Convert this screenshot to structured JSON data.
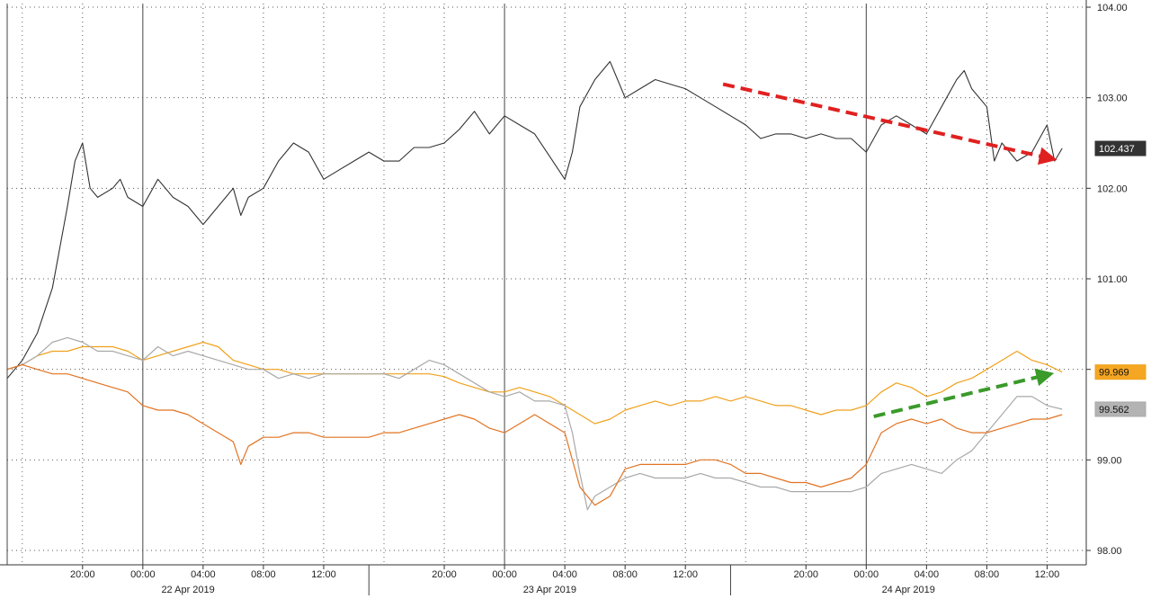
{
  "chart_data": {
    "type": "line",
    "title": "",
    "xlabel": "",
    "ylabel": "",
    "grid": true,
    "ylim": [
      98.0,
      104.0
    ],
    "y_ticks": [
      "98.00",
      "99.00",
      "100.00",
      "101.00",
      "102.00",
      "103.00",
      "104.00"
    ],
    "x_ticks": [
      {
        "label": "20:00",
        "t": 5
      },
      {
        "label": "00:00",
        "t": 9
      },
      {
        "label": "04:00",
        "t": 13
      },
      {
        "label": "08:00",
        "t": 17
      },
      {
        "label": "12:00",
        "t": 21
      },
      {
        "label": "20:00",
        "t": 29
      },
      {
        "label": "00:00",
        "t": 33
      },
      {
        "label": "04:00",
        "t": 37
      },
      {
        "label": "08:00",
        "t": 41
      },
      {
        "label": "12:00",
        "t": 45
      },
      {
        "label": "20:00",
        "t": 53
      },
      {
        "label": "00:00",
        "t": 57
      },
      {
        "label": "04:00",
        "t": 61
      },
      {
        "label": "08:00",
        "t": 65
      },
      {
        "label": "12:00",
        "t": 69
      }
    ],
    "date_labels": [
      "22 Apr 2019",
      "23 Apr 2019",
      "24 Apr 2019"
    ],
    "series": [
      {
        "color": "#333333",
        "last_label": "102.437",
        "points": [
          [
            0,
            99.9
          ],
          [
            1,
            100.1
          ],
          [
            2,
            100.4
          ],
          [
            3,
            100.9
          ],
          [
            4,
            101.8
          ],
          [
            4.5,
            102.3
          ],
          [
            5,
            102.5
          ],
          [
            5.5,
            102.0
          ],
          [
            6,
            101.9
          ],
          [
            7,
            102.0
          ],
          [
            7.5,
            102.1
          ],
          [
            8,
            101.9
          ],
          [
            9,
            101.8
          ],
          [
            10,
            102.1
          ],
          [
            11,
            101.9
          ],
          [
            12,
            101.8
          ],
          [
            13,
            101.6
          ],
          [
            14,
            101.8
          ],
          [
            15,
            102.0
          ],
          [
            15.5,
            101.7
          ],
          [
            16,
            101.9
          ],
          [
            17,
            102.0
          ],
          [
            18,
            102.3
          ],
          [
            19,
            102.5
          ],
          [
            20,
            102.4
          ],
          [
            21,
            102.1
          ],
          [
            23,
            102.3
          ],
          [
            24,
            102.4
          ],
          [
            25,
            102.3
          ],
          [
            26,
            102.3
          ],
          [
            27,
            102.45
          ],
          [
            28,
            102.45
          ],
          [
            29,
            102.5
          ],
          [
            30,
            102.65
          ],
          [
            31,
            102.85
          ],
          [
            32,
            102.6
          ],
          [
            33,
            102.8
          ],
          [
            34,
            102.7
          ],
          [
            35,
            102.6
          ],
          [
            36,
            102.35
          ],
          [
            37,
            102.1
          ],
          [
            37.5,
            102.4
          ],
          [
            38,
            102.9
          ],
          [
            39,
            103.2
          ],
          [
            40,
            103.4
          ],
          [
            40.5,
            103.2
          ],
          [
            41,
            103.0
          ],
          [
            42,
            103.1
          ],
          [
            43,
            103.2
          ],
          [
            44,
            103.15
          ],
          [
            45,
            103.1
          ],
          [
            46,
            103.0
          ],
          [
            47,
            102.9
          ],
          [
            48,
            102.8
          ],
          [
            49,
            102.7
          ],
          [
            50,
            102.55
          ],
          [
            51,
            102.6
          ],
          [
            52,
            102.6
          ],
          [
            53,
            102.55
          ],
          [
            54,
            102.6
          ],
          [
            55,
            102.55
          ],
          [
            56,
            102.55
          ],
          [
            57,
            102.4
          ],
          [
            58,
            102.7
          ],
          [
            59,
            102.8
          ],
          [
            60,
            102.7
          ],
          [
            61,
            102.6
          ],
          [
            62,
            102.9
          ],
          [
            63,
            103.2
          ],
          [
            63.5,
            103.3
          ],
          [
            64,
            103.1
          ],
          [
            65,
            102.9
          ],
          [
            65.5,
            102.3
          ],
          [
            66,
            102.5
          ],
          [
            67,
            102.3
          ],
          [
            68,
            102.4
          ],
          [
            69,
            102.7
          ],
          [
            69.5,
            102.3
          ],
          [
            70,
            102.44
          ]
        ]
      },
      {
        "color": "#f0a11c",
        "last_label": "99.969",
        "points": [
          [
            0,
            100.0
          ],
          [
            1,
            100.05
          ],
          [
            2,
            100.15
          ],
          [
            3,
            100.2
          ],
          [
            4,
            100.2
          ],
          [
            5,
            100.25
          ],
          [
            6,
            100.25
          ],
          [
            7,
            100.25
          ],
          [
            8,
            100.2
          ],
          [
            9,
            100.1
          ],
          [
            10,
            100.15
          ],
          [
            11,
            100.2
          ],
          [
            12,
            100.25
          ],
          [
            13,
            100.3
          ],
          [
            14,
            100.25
          ],
          [
            15,
            100.1
          ],
          [
            16,
            100.05
          ],
          [
            17,
            100.0
          ],
          [
            18,
            100.0
          ],
          [
            19,
            99.95
          ],
          [
            20,
            99.95
          ],
          [
            21,
            99.95
          ],
          [
            22,
            99.95
          ],
          [
            23,
            99.95
          ],
          [
            24,
            99.95
          ],
          [
            25,
            99.95
          ],
          [
            26,
            99.95
          ],
          [
            27,
            99.95
          ],
          [
            28,
            99.95
          ],
          [
            29,
            99.92
          ],
          [
            30,
            99.85
          ],
          [
            31,
            99.8
          ],
          [
            32,
            99.75
          ],
          [
            33,
            99.75
          ],
          [
            34,
            99.8
          ],
          [
            35,
            99.75
          ],
          [
            36,
            99.7
          ],
          [
            37,
            99.6
          ],
          [
            38,
            99.5
          ],
          [
            39,
            99.4
          ],
          [
            40,
            99.45
          ],
          [
            41,
            99.55
          ],
          [
            42,
            99.6
          ],
          [
            43,
            99.65
          ],
          [
            44,
            99.6
          ],
          [
            45,
            99.65
          ],
          [
            46,
            99.65
          ],
          [
            47,
            99.7
          ],
          [
            48,
            99.65
          ],
          [
            49,
            99.7
          ],
          [
            50,
            99.65
          ],
          [
            51,
            99.6
          ],
          [
            52,
            99.6
          ],
          [
            53,
            99.55
          ],
          [
            54,
            99.5
          ],
          [
            55,
            99.55
          ],
          [
            56,
            99.55
          ],
          [
            57,
            99.6
          ],
          [
            58,
            99.75
          ],
          [
            59,
            99.85
          ],
          [
            60,
            99.8
          ],
          [
            61,
            99.7
          ],
          [
            62,
            99.75
          ],
          [
            63,
            99.85
          ],
          [
            64,
            99.9
          ],
          [
            65,
            100.0
          ],
          [
            66,
            100.1
          ],
          [
            67,
            100.2
          ],
          [
            68,
            100.1
          ],
          [
            69,
            100.05
          ],
          [
            70,
            99.97
          ]
        ]
      },
      {
        "color": "#a9a9a9",
        "last_label": "99.562",
        "points": [
          [
            0,
            100.0
          ],
          [
            1,
            100.05
          ],
          [
            2,
            100.15
          ],
          [
            3,
            100.3
          ],
          [
            4,
            100.35
          ],
          [
            5,
            100.3
          ],
          [
            6,
            100.2
          ],
          [
            7,
            100.2
          ],
          [
            8,
            100.15
          ],
          [
            9,
            100.1
          ],
          [
            10,
            100.25
          ],
          [
            11,
            100.15
          ],
          [
            12,
            100.2
          ],
          [
            13,
            100.15
          ],
          [
            14,
            100.1
          ],
          [
            15,
            100.05
          ],
          [
            16,
            100.0
          ],
          [
            17,
            100.0
          ],
          [
            18,
            99.9
          ],
          [
            19,
            99.95
          ],
          [
            20,
            99.9
          ],
          [
            21,
            99.95
          ],
          [
            22,
            99.95
          ],
          [
            23,
            99.95
          ],
          [
            24,
            99.95
          ],
          [
            25,
            99.95
          ],
          [
            26,
            99.9
          ],
          [
            27,
            100.0
          ],
          [
            28,
            100.1
          ],
          [
            29,
            100.05
          ],
          [
            30,
            99.95
          ],
          [
            31,
            99.85
          ],
          [
            32,
            99.75
          ],
          [
            33,
            99.7
          ],
          [
            34,
            99.75
          ],
          [
            35,
            99.65
          ],
          [
            36,
            99.65
          ],
          [
            37,
            99.6
          ],
          [
            37.5,
            99.3
          ],
          [
            38,
            98.85
          ],
          [
            38.5,
            98.45
          ],
          [
            39,
            98.6
          ],
          [
            40,
            98.7
          ],
          [
            41,
            98.8
          ],
          [
            42,
            98.85
          ],
          [
            43,
            98.8
          ],
          [
            44,
            98.8
          ],
          [
            45,
            98.8
          ],
          [
            46,
            98.85
          ],
          [
            47,
            98.8
          ],
          [
            48,
            98.8
          ],
          [
            49,
            98.75
          ],
          [
            50,
            98.7
          ],
          [
            51,
            98.7
          ],
          [
            52,
            98.65
          ],
          [
            53,
            98.65
          ],
          [
            54,
            98.65
          ],
          [
            55,
            98.65
          ],
          [
            56,
            98.65
          ],
          [
            57,
            98.7
          ],
          [
            58,
            98.85
          ],
          [
            59,
            98.9
          ],
          [
            60,
            98.95
          ],
          [
            61,
            98.9
          ],
          [
            62,
            98.85
          ],
          [
            63,
            99.0
          ],
          [
            64,
            99.1
          ],
          [
            65,
            99.3
          ],
          [
            66,
            99.5
          ],
          [
            67,
            99.7
          ],
          [
            68,
            99.7
          ],
          [
            69,
            99.6
          ],
          [
            70,
            99.56
          ]
        ]
      },
      {
        "color": "#e27322",
        "last_label": "",
        "points": [
          [
            0,
            100.0
          ],
          [
            1,
            100.05
          ],
          [
            2,
            100.0
          ],
          [
            3,
            99.95
          ],
          [
            4,
            99.95
          ],
          [
            5,
            99.9
          ],
          [
            6,
            99.85
          ],
          [
            7,
            99.8
          ],
          [
            8,
            99.75
          ],
          [
            9,
            99.6
          ],
          [
            10,
            99.55
          ],
          [
            11,
            99.55
          ],
          [
            12,
            99.5
          ],
          [
            13,
            99.4
          ],
          [
            14,
            99.3
          ],
          [
            15,
            99.2
          ],
          [
            15.5,
            98.95
          ],
          [
            16,
            99.15
          ],
          [
            17,
            99.25
          ],
          [
            18,
            99.25
          ],
          [
            19,
            99.3
          ],
          [
            20,
            99.3
          ],
          [
            21,
            99.25
          ],
          [
            22,
            99.25
          ],
          [
            23,
            99.25
          ],
          [
            24,
            99.25
          ],
          [
            25,
            99.3
          ],
          [
            26,
            99.3
          ],
          [
            27,
            99.35
          ],
          [
            28,
            99.4
          ],
          [
            29,
            99.45
          ],
          [
            30,
            99.5
          ],
          [
            31,
            99.45
          ],
          [
            32,
            99.35
          ],
          [
            33,
            99.3
          ],
          [
            34,
            99.4
          ],
          [
            35,
            99.5
          ],
          [
            36,
            99.4
          ],
          [
            37,
            99.3
          ],
          [
            38,
            98.7
          ],
          [
            39,
            98.5
          ],
          [
            40,
            98.6
          ],
          [
            41,
            98.9
          ],
          [
            42,
            98.95
          ],
          [
            43,
            98.95
          ],
          [
            44,
            98.95
          ],
          [
            45,
            98.95
          ],
          [
            46,
            99.0
          ],
          [
            47,
            99.0
          ],
          [
            48,
            98.95
          ],
          [
            49,
            98.85
          ],
          [
            50,
            98.85
          ],
          [
            51,
            98.8
          ],
          [
            52,
            98.75
          ],
          [
            53,
            98.75
          ],
          [
            54,
            98.7
          ],
          [
            55,
            98.75
          ],
          [
            56,
            98.8
          ],
          [
            57,
            98.95
          ],
          [
            58,
            99.3
          ],
          [
            59,
            99.4
          ],
          [
            60,
            99.45
          ],
          [
            61,
            99.4
          ],
          [
            62,
            99.45
          ],
          [
            63,
            99.35
          ],
          [
            64,
            99.3
          ],
          [
            65,
            99.3
          ],
          [
            66,
            99.35
          ],
          [
            67,
            99.4
          ],
          [
            68,
            99.45
          ],
          [
            69,
            99.45
          ],
          [
            70,
            99.5
          ]
        ]
      }
    ],
    "annotations": [
      {
        "type": "arrow",
        "color": "#e02020",
        "from": [
          47.5,
          103.15
        ],
        "to": [
          69.2,
          102.33
        ]
      },
      {
        "type": "arrow",
        "color": "#3a9a2a",
        "from": [
          57.5,
          99.48
        ],
        "to": [
          69.0,
          99.94
        ]
      }
    ]
  }
}
